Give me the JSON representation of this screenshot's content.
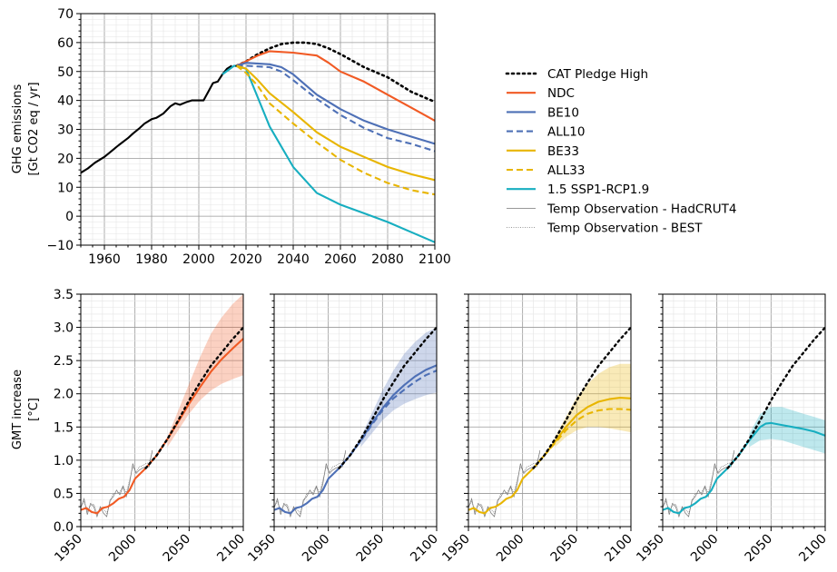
{
  "colors": {
    "cat": "#000000",
    "ndc": "#f15a24",
    "be10": "#4e70b6",
    "be33": "#e8b500",
    "ssp": "#17aec0",
    "hist": "#000000",
    "obs": "#777777"
  },
  "chart_data": [
    {
      "id": "emissions",
      "type": "line",
      "title": "",
      "xlabel": "",
      "ylabel": "GHG emissions",
      "ylabel2": "[Gt CO2 eq / yr]",
      "xlim": [
        1950,
        2100
      ],
      "ylim": [
        -10,
        70
      ],
      "xticks": [
        1960,
        1980,
        2000,
        2020,
        2040,
        2060,
        2080,
        2100
      ],
      "yticks": [
        -10,
        0,
        10,
        20,
        30,
        40,
        50,
        60,
        70
      ],
      "grid": true,
      "legend_position": "right",
      "series": [
        {
          "key": "hist",
          "color_key": "hist",
          "style": "solid",
          "x": [
            1950,
            1953,
            1956,
            1960,
            1963,
            1966,
            1970,
            1972,
            1975,
            1977,
            1980,
            1982,
            1985,
            1988,
            1990,
            1992,
            1995,
            1997,
            2000,
            2002,
            2004,
            2006,
            2008,
            2010,
            2012,
            2014
          ],
          "y": [
            15,
            16.5,
            18.5,
            20.5,
            22.5,
            24.5,
            27,
            28.5,
            30.5,
            32,
            33.5,
            34,
            35.5,
            38,
            39,
            38.5,
            39.5,
            40,
            40,
            40,
            43,
            46,
            46.5,
            49,
            51,
            52
          ]
        },
        {
          "key": "ssp",
          "name": "1.5 SSP1-RCP1.9",
          "color_key": "ssp",
          "style": "solid",
          "x": [
            2010,
            2015,
            2020,
            2030,
            2040,
            2050,
            2060,
            2070,
            2080,
            2090,
            2100
          ],
          "y": [
            49,
            52,
            51,
            31,
            17,
            8,
            4,
            1,
            -2,
            -5.5,
            -9
          ]
        },
        {
          "key": "cat",
          "name": "CAT Pledge High",
          "color_key": "cat",
          "style": "dotted",
          "x": [
            2016,
            2020,
            2025,
            2030,
            2035,
            2040,
            2045,
            2050,
            2055,
            2060,
            2070,
            2080,
            2090,
            2100
          ],
          "y": [
            52,
            53.5,
            56,
            58,
            59.5,
            60,
            60,
            59.5,
            58,
            56,
            51.5,
            48,
            43,
            39.5
          ]
        },
        {
          "key": "ndc",
          "name": "NDC",
          "color_key": "ndc",
          "style": "solid",
          "x": [
            2016,
            2020,
            2025,
            2030,
            2040,
            2050,
            2055,
            2060,
            2070,
            2080,
            2090,
            2100
          ],
          "y": [
            52,
            53.5,
            55.5,
            57,
            56.5,
            55.5,
            53,
            50,
            46.5,
            42,
            37.5,
            33
          ]
        },
        {
          "key": "be10",
          "name": "BE10",
          "color_key": "be10",
          "style": "solid",
          "x": [
            2016,
            2020,
            2030,
            2035,
            2040,
            2050,
            2060,
            2070,
            2080,
            2090,
            2100
          ],
          "y": [
            52,
            53,
            52.5,
            51.5,
            49,
            42,
            37,
            33,
            30,
            27.5,
            25
          ]
        },
        {
          "key": "all10",
          "name": "ALL10",
          "color_key": "be10",
          "style": "dashed",
          "x": [
            2016,
            2020,
            2030,
            2035,
            2040,
            2050,
            2060,
            2070,
            2080,
            2090,
            2100
          ],
          "y": [
            52,
            52,
            51.5,
            50,
            47,
            40.5,
            35,
            30.5,
            27,
            25,
            22.5
          ]
        },
        {
          "key": "be33",
          "name": "BE33",
          "color_key": "be33",
          "style": "solid",
          "x": [
            2016,
            2020,
            2025,
            2030,
            2040,
            2050,
            2060,
            2070,
            2080,
            2090,
            2100
          ],
          "y": [
            52,
            51,
            47,
            42.5,
            36,
            29,
            24,
            20.5,
            17,
            14.5,
            12.5
          ]
        },
        {
          "key": "all33",
          "name": "ALL33",
          "color_key": "be33",
          "style": "dashed",
          "x": [
            2016,
            2020,
            2025,
            2030,
            2040,
            2050,
            2060,
            2070,
            2080,
            2090,
            2100
          ],
          "y": [
            52,
            49.5,
            45,
            39,
            32,
            25.5,
            19.5,
            15,
            11.5,
            9,
            7.5
          ]
        }
      ],
      "legend": [
        {
          "label": "CAT Pledge High",
          "color_key": "cat",
          "style": "dotted"
        },
        {
          "label": "NDC",
          "color_key": "ndc",
          "style": "solid"
        },
        {
          "label": "BE10",
          "color_key": "be10",
          "style": "solid"
        },
        {
          "label": "ALL10",
          "color_key": "be10",
          "style": "dashed"
        },
        {
          "label": "BE33",
          "color_key": "be33",
          "style": "solid"
        },
        {
          "label": "ALL33",
          "color_key": "be33",
          "style": "dashed"
        },
        {
          "label": "1.5 SSP1-RCP1.9",
          "color_key": "ssp",
          "style": "solid"
        },
        {
          "label": "Temp Observation - HadCRUT4",
          "color_key": "obs",
          "style": "thin"
        },
        {
          "label": "Temp Observation - BEST",
          "color_key": "obs",
          "style": "thin-dotted"
        }
      ]
    },
    {
      "id": "gmt",
      "type": "line",
      "panels": 4,
      "title": "",
      "ylabel": "GMT increase",
      "ylabel2": "[°C]",
      "xlim": [
        1950,
        2100
      ],
      "ylim": [
        0,
        3.5
      ],
      "xticks": [
        1950,
        2000,
        2050,
        2100
      ],
      "yticks": [
        0.0,
        0.5,
        1.0,
        1.5,
        2.0,
        2.5,
        3.0,
        3.5
      ],
      "yticklabels": [
        "0.0",
        "0.5",
        "1.0",
        "1.5",
        "2.0",
        "2.5",
        "3.0",
        "3.5"
      ],
      "grid": true,
      "cat_pledge_high": {
        "x": [
          2010,
          2020,
          2030,
          2040,
          2050,
          2060,
          2070,
          2080,
          2090,
          2100
        ],
        "y": [
          0.88,
          1.07,
          1.32,
          1.6,
          1.9,
          2.17,
          2.42,
          2.62,
          2.82,
          3.0
        ]
      },
      "observations": {
        "x": [
          1950,
          1953,
          1956,
          1959,
          1962,
          1965,
          1968,
          1971,
          1974,
          1977,
          1980,
          1983,
          1986,
          1989,
          1992,
          1995,
          1998,
          2001,
          2004,
          2007,
          2010,
          2013,
          2016
        ],
        "hadcrut4": [
          0.28,
          0.42,
          0.18,
          0.35,
          0.3,
          0.15,
          0.3,
          0.2,
          0.15,
          0.4,
          0.45,
          0.55,
          0.48,
          0.6,
          0.45,
          0.65,
          0.95,
          0.8,
          0.85,
          0.88,
          0.9,
          0.9,
          1.15
        ],
        "best": [
          0.3,
          0.38,
          0.22,
          0.32,
          0.34,
          0.2,
          0.28,
          0.26,
          0.2,
          0.36,
          0.5,
          0.5,
          0.52,
          0.62,
          0.5,
          0.7,
          0.9,
          0.82,
          0.9,
          0.92,
          0.95,
          0.96,
          1.12
        ]
      },
      "panel_series": [
        {
          "band": {
            "color_key": "ndc",
            "x": [
              2030,
              2040,
              2050,
              2060,
              2070,
              2080,
              2090,
              2100
            ],
            "low": [
              1.2,
              1.45,
              1.7,
              1.9,
              2.05,
              2.15,
              2.22,
              2.28
            ],
            "high": [
              1.35,
              1.75,
              2.15,
              2.55,
              2.9,
              3.15,
              3.35,
              3.5
            ]
          },
          "lines": [
            {
              "name": "NDC",
              "color_key": "ndc",
              "style": "solid",
              "x": [
                1950,
                1955,
                1960,
                1965,
                1970,
                1975,
                1980,
                1985,
                1990,
                1995,
                2000,
                2005,
                2010,
                2020,
                2030,
                2040,
                2050,
                2060,
                2070,
                2080,
                2090,
                2100
              ],
              "y": [
                0.25,
                0.28,
                0.22,
                0.2,
                0.28,
                0.3,
                0.35,
                0.42,
                0.45,
                0.55,
                0.72,
                0.8,
                0.88,
                1.07,
                1.32,
                1.58,
                1.85,
                2.1,
                2.33,
                2.52,
                2.68,
                2.83
              ]
            }
          ]
        },
        {
          "band": {
            "color_key": "be10",
            "x": [
              2030,
              2040,
              2050,
              2060,
              2070,
              2080,
              2090,
              2100
            ],
            "low": [
              1.2,
              1.4,
              1.6,
              1.75,
              1.85,
              1.92,
              1.98,
              2.02
            ],
            "high": [
              1.35,
              1.7,
              2.05,
              2.35,
              2.6,
              2.78,
              2.92,
              3.0
            ]
          },
          "lines": [
            {
              "name": "BE10",
              "color_key": "be10",
              "style": "solid",
              "x": [
                1950,
                1955,
                1960,
                1965,
                1970,
                1975,
                1980,
                1985,
                1990,
                1995,
                2000,
                2005,
                2010,
                2020,
                2030,
                2040,
                2050,
                2060,
                2070,
                2080,
                2090,
                2100
              ],
              "y": [
                0.25,
                0.28,
                0.22,
                0.2,
                0.28,
                0.3,
                0.35,
                0.42,
                0.45,
                0.55,
                0.72,
                0.8,
                0.88,
                1.07,
                1.3,
                1.55,
                1.78,
                1.98,
                2.13,
                2.26,
                2.36,
                2.43
              ]
            },
            {
              "name": "ALL10",
              "color_key": "be10",
              "style": "dashed",
              "x": [
                2020,
                2030,
                2040,
                2050,
                2060,
                2070,
                2080,
                2090,
                2100
              ],
              "y": [
                1.07,
                1.29,
                1.53,
                1.75,
                1.93,
                2.06,
                2.18,
                2.28,
                2.35
              ]
            }
          ]
        },
        {
          "band": {
            "color_key": "be33",
            "x": [
              2030,
              2040,
              2050,
              2060,
              2070,
              2080,
              2090,
              2100
            ],
            "low": [
              1.2,
              1.35,
              1.45,
              1.5,
              1.5,
              1.48,
              1.45,
              1.42
            ],
            "high": [
              1.35,
              1.65,
              1.95,
              2.15,
              2.3,
              2.4,
              2.45,
              2.45
            ]
          },
          "lines": [
            {
              "name": "BE33",
              "color_key": "be33",
              "style": "solid",
              "x": [
                1950,
                1955,
                1960,
                1965,
                1970,
                1975,
                1980,
                1985,
                1990,
                1995,
                2000,
                2005,
                2010,
                2020,
                2030,
                2040,
                2050,
                2060,
                2070,
                2080,
                2090,
                2100
              ],
              "y": [
                0.25,
                0.28,
                0.22,
                0.2,
                0.28,
                0.3,
                0.35,
                0.42,
                0.45,
                0.55,
                0.72,
                0.8,
                0.88,
                1.07,
                1.28,
                1.5,
                1.68,
                1.8,
                1.88,
                1.92,
                1.94,
                1.93
              ]
            },
            {
              "name": "ALL33",
              "color_key": "be33",
              "style": "dashed",
              "x": [
                2020,
                2030,
                2040,
                2050,
                2060,
                2070,
                2080,
                2090,
                2100
              ],
              "y": [
                1.07,
                1.26,
                1.45,
                1.6,
                1.7,
                1.75,
                1.77,
                1.77,
                1.76
              ]
            }
          ]
        },
        {
          "band": {
            "color_key": "ssp",
            "x": [
              2030,
              2040,
              2050,
              2060,
              2070,
              2080,
              2090,
              2100
            ],
            "low": [
              1.2,
              1.3,
              1.32,
              1.3,
              1.25,
              1.2,
              1.15,
              1.1
            ],
            "high": [
              1.4,
              1.7,
              1.8,
              1.8,
              1.75,
              1.7,
              1.65,
              1.6
            ]
          },
          "lines": [
            {
              "name": "1.5 SSP1-RCP1.9",
              "color_key": "ssp",
              "style": "solid",
              "x": [
                1950,
                1955,
                1960,
                1965,
                1970,
                1975,
                1980,
                1985,
                1990,
                1995,
                2000,
                2005,
                2010,
                2020,
                2030,
                2040,
                2045,
                2050,
                2060,
                2070,
                2080,
                2090,
                2100
              ],
              "y": [
                0.25,
                0.28,
                0.22,
                0.2,
                0.28,
                0.3,
                0.35,
                0.42,
                0.45,
                0.55,
                0.72,
                0.8,
                0.88,
                1.07,
                1.3,
                1.5,
                1.55,
                1.56,
                1.53,
                1.5,
                1.47,
                1.43,
                1.37
              ]
            }
          ]
        }
      ]
    }
  ]
}
